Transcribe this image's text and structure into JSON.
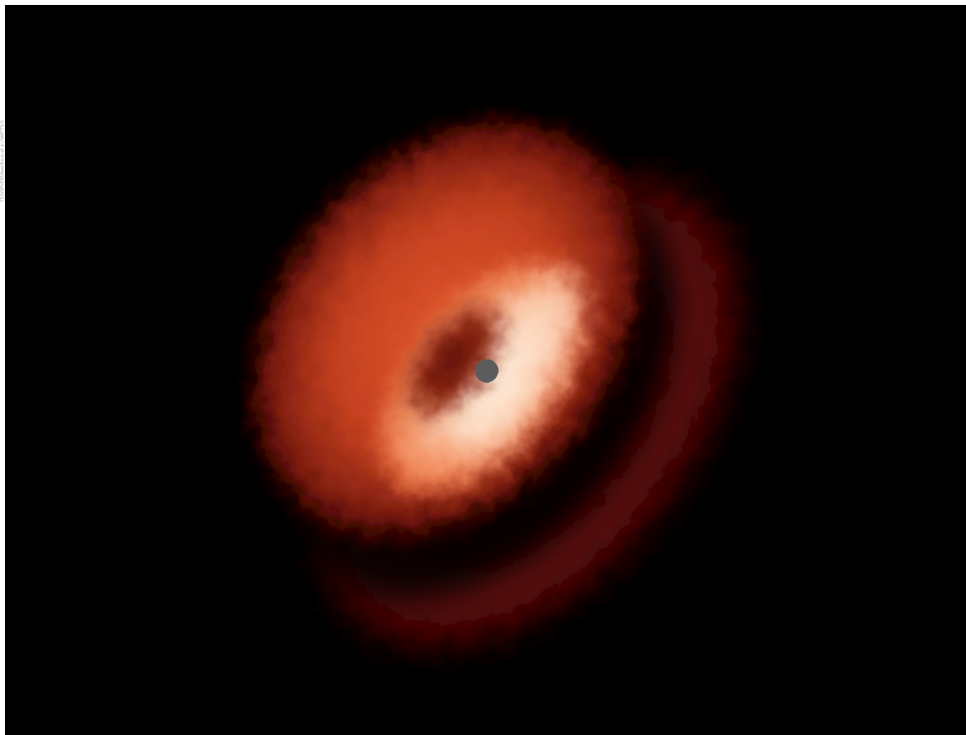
{
  "image": {
    "subject": "protoplanetary-disk",
    "background_color": "#000000",
    "border_color": "#ffffff",
    "colors": {
      "core_highlight": "#fff1df",
      "inner_glow": "#f7a77c",
      "mid_orange": "#e0572c",
      "outer_red": "#a8321a",
      "deep_red": "#5a0a05",
      "outer_ring": "#5e0808",
      "gap": "#000000",
      "coronagraph_mask": "#5c5c5c"
    }
  },
  "credit": {
    "text": "ESO/SPHERE/Avenhaus et al./DARTTS-S"
  }
}
